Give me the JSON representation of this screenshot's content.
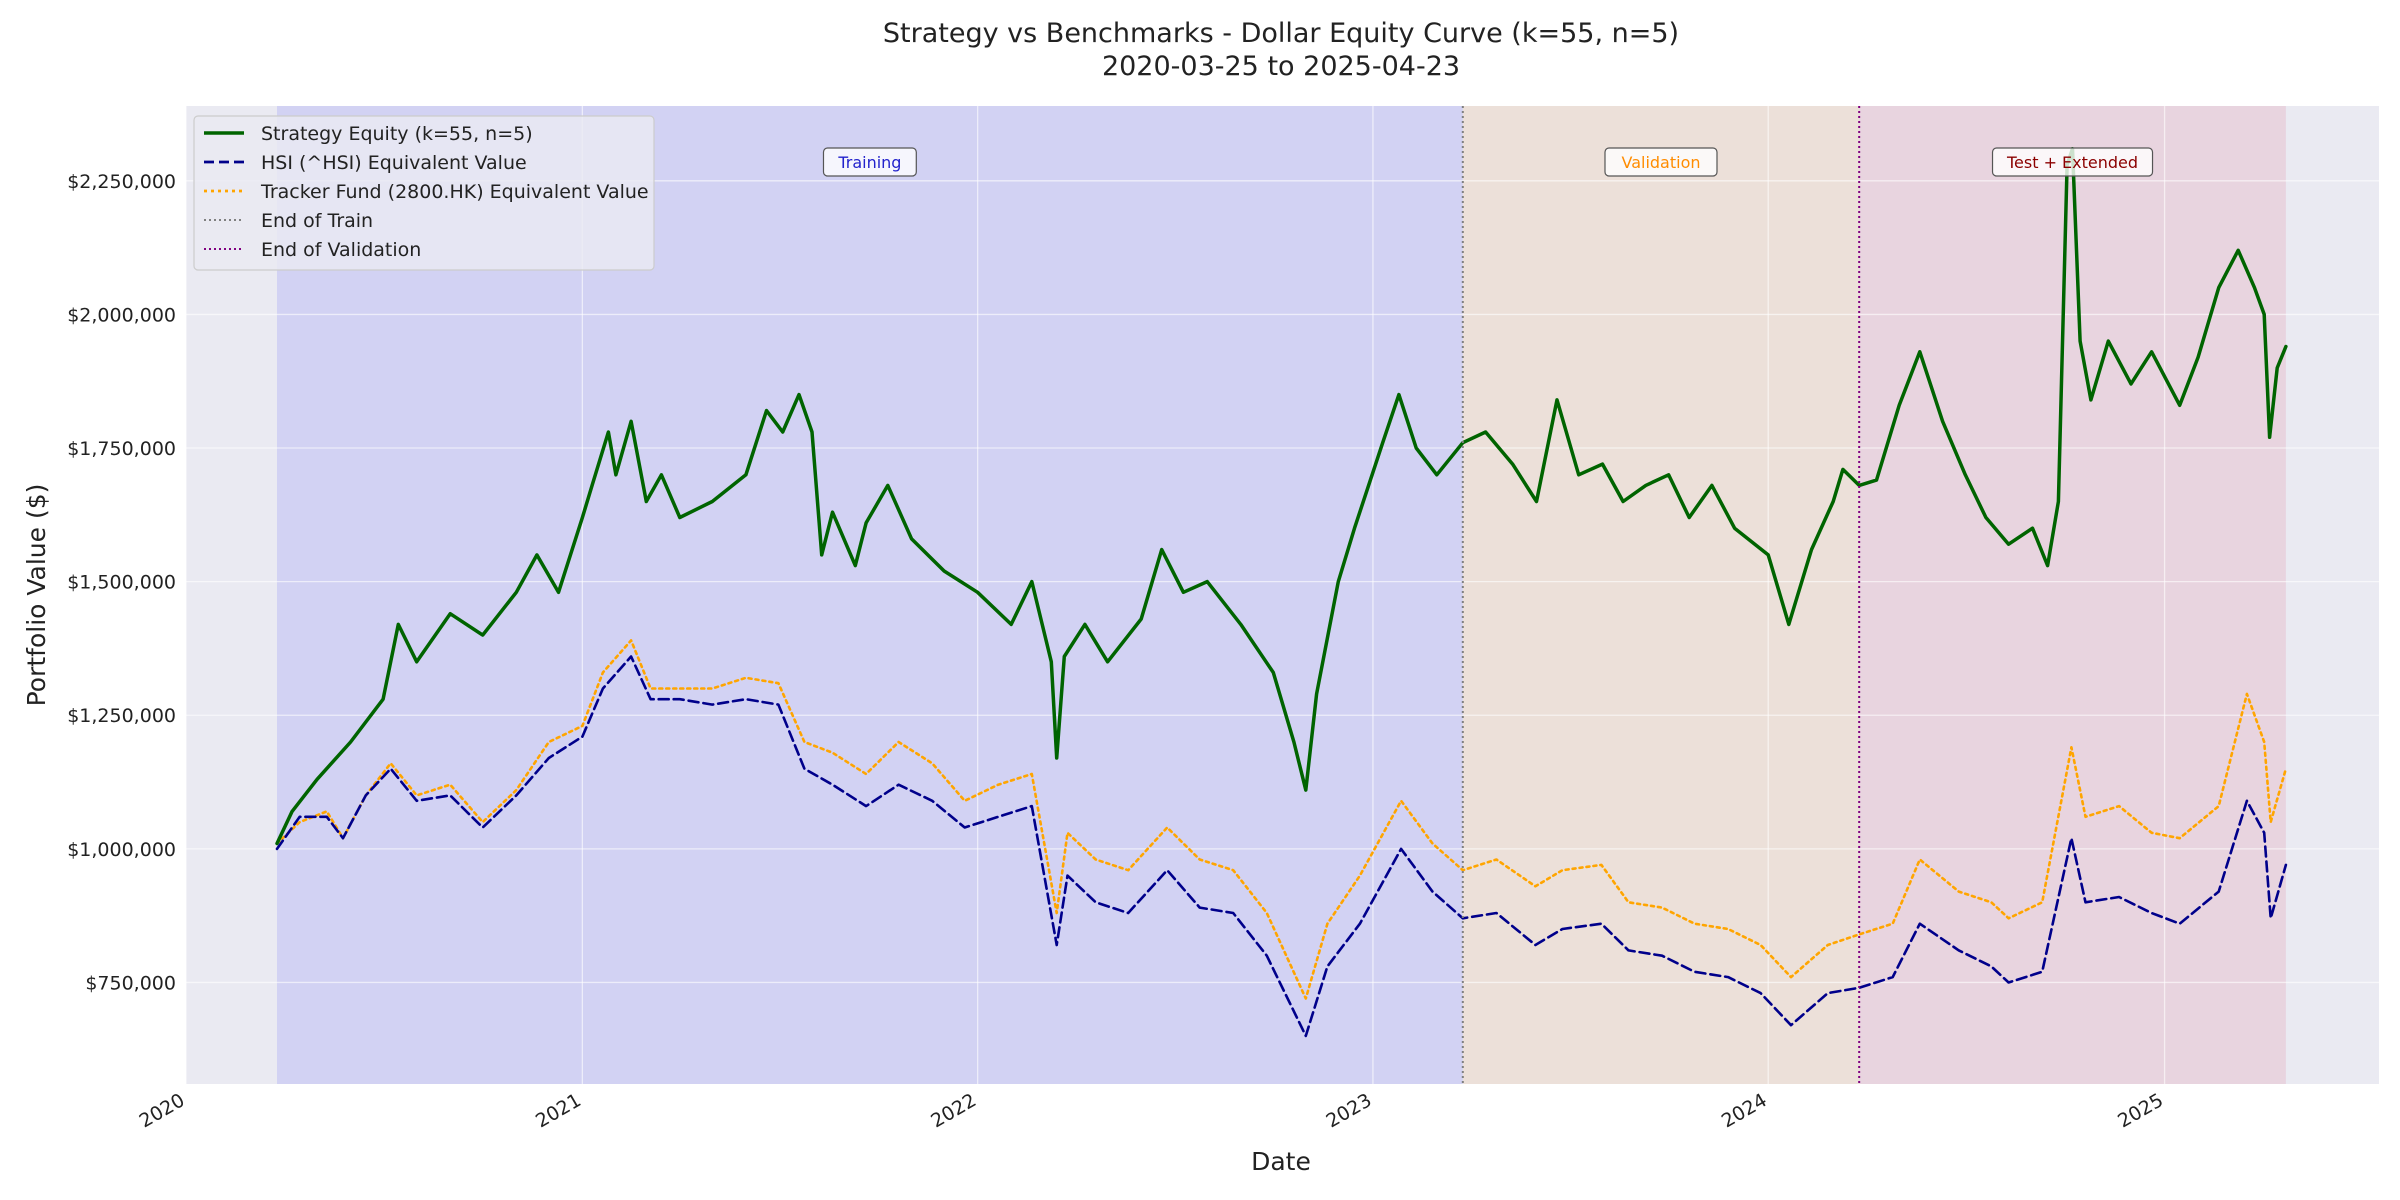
{
  "chart_data": {
    "type": "line",
    "title": "Strategy vs Benchmarks - Dollar Equity Curve (k=55, n=5)",
    "subtitle": "2020-03-25 to 2025-04-23",
    "xlabel": "Date",
    "ylabel": "Portfolio Value ($)",
    "xlim": [
      "2020-01-01",
      "2025-07-18"
    ],
    "ylim": [
      560000,
      2390000
    ],
    "x_ticks": [
      "2020-01-01",
      "2021-01-01",
      "2022-01-01",
      "2023-01-01",
      "2024-01-01",
      "2025-01-01"
    ],
    "x_tick_labels": [
      "2020",
      "2021",
      "2022",
      "2023",
      "2024",
      "2025"
    ],
    "y_ticks": [
      750000,
      1000000,
      1250000,
      1500000,
      1750000,
      2000000,
      2250000
    ],
    "y_tick_labels": [
      "$750,000",
      "$1,000,000",
      "$1,250,000",
      "$1,500,000",
      "$1,750,000",
      "$2,000,000",
      "$2,250,000"
    ],
    "grid": true,
    "legend_position": "top-left",
    "regions": [
      {
        "label": "Training",
        "start": "2020-03-25",
        "end": "2023-03-25",
        "fill": "#0000ff",
        "text_color": "#2222cc"
      },
      {
        "label": "Validation",
        "start": "2023-03-25",
        "end": "2024-03-25",
        "fill": "#ff8c00",
        "text_color": "#ff8c00"
      },
      {
        "label": "Test + Extended",
        "start": "2024-03-25",
        "end": "2025-04-23",
        "fill": "#dc143c",
        "text_color": "#8b0000"
      }
    ],
    "vlines": [
      {
        "name": "End of Train",
        "x": "2023-03-25",
        "color": "#808080"
      },
      {
        "name": "End of Validation",
        "x": "2024-03-25",
        "color": "#800080"
      }
    ],
    "series": [
      {
        "name": "Strategy Equity (k=55, n=5)",
        "color": "#006400",
        "style": "solid",
        "points": [
          [
            "2020-03-25",
            1010000
          ],
          [
            "2020-04-08",
            1070000
          ],
          [
            "2020-05-01",
            1130000
          ],
          [
            "2020-06-01",
            1200000
          ],
          [
            "2020-07-01",
            1280000
          ],
          [
            "2020-07-15",
            1420000
          ],
          [
            "2020-08-01",
            1350000
          ],
          [
            "2020-09-01",
            1440000
          ],
          [
            "2020-10-01",
            1400000
          ],
          [
            "2020-11-01",
            1480000
          ],
          [
            "2020-11-20",
            1550000
          ],
          [
            "2020-12-10",
            1480000
          ],
          [
            "2021-01-01",
            1620000
          ],
          [
            "2021-01-10",
            1680000
          ],
          [
            "2021-01-25",
            1780000
          ],
          [
            "2021-02-01",
            1700000
          ],
          [
            "2021-02-15",
            1800000
          ],
          [
            "2021-03-01",
            1650000
          ],
          [
            "2021-03-15",
            1700000
          ],
          [
            "2021-04-01",
            1620000
          ],
          [
            "2021-05-01",
            1650000
          ],
          [
            "2021-06-01",
            1700000
          ],
          [
            "2021-06-20",
            1820000
          ],
          [
            "2021-07-05",
            1780000
          ],
          [
            "2021-07-20",
            1850000
          ],
          [
            "2021-08-01",
            1780000
          ],
          [
            "2021-08-10",
            1550000
          ],
          [
            "2021-08-20",
            1630000
          ],
          [
            "2021-09-10",
            1530000
          ],
          [
            "2021-09-20",
            1610000
          ],
          [
            "2021-10-10",
            1680000
          ],
          [
            "2021-11-01",
            1580000
          ],
          [
            "2021-12-01",
            1520000
          ],
          [
            "2022-01-01",
            1480000
          ],
          [
            "2022-02-01",
            1420000
          ],
          [
            "2022-02-20",
            1500000
          ],
          [
            "2022-03-10",
            1350000
          ],
          [
            "2022-03-15",
            1170000
          ],
          [
            "2022-03-22",
            1360000
          ],
          [
            "2022-04-10",
            1420000
          ],
          [
            "2022-05-01",
            1350000
          ],
          [
            "2022-06-01",
            1430000
          ],
          [
            "2022-06-20",
            1560000
          ],
          [
            "2022-07-10",
            1480000
          ],
          [
            "2022-08-01",
            1500000
          ],
          [
            "2022-09-01",
            1420000
          ],
          [
            "2022-10-01",
            1330000
          ],
          [
            "2022-10-20",
            1200000
          ],
          [
            "2022-10-31",
            1110000
          ],
          [
            "2022-11-10",
            1290000
          ],
          [
            "2022-11-30",
            1500000
          ],
          [
            "2022-12-15",
            1600000
          ],
          [
            "2023-01-10",
            1760000
          ],
          [
            "2023-01-25",
            1850000
          ],
          [
            "2023-02-10",
            1750000
          ],
          [
            "2023-03-01",
            1700000
          ],
          [
            "2023-03-25",
            1760000
          ],
          [
            "2023-04-15",
            1780000
          ],
          [
            "2023-05-10",
            1720000
          ],
          [
            "2023-06-01",
            1650000
          ],
          [
            "2023-06-20",
            1840000
          ],
          [
            "2023-07-10",
            1700000
          ],
          [
            "2023-08-01",
            1720000
          ],
          [
            "2023-08-20",
            1650000
          ],
          [
            "2023-09-10",
            1680000
          ],
          [
            "2023-10-01",
            1700000
          ],
          [
            "2023-10-20",
            1620000
          ],
          [
            "2023-11-10",
            1680000
          ],
          [
            "2023-12-01",
            1600000
          ],
          [
            "2024-01-01",
            1550000
          ],
          [
            "2024-01-20",
            1420000
          ],
          [
            "2024-02-10",
            1560000
          ],
          [
            "2024-03-01",
            1650000
          ],
          [
            "2024-03-10",
            1710000
          ],
          [
            "2024-03-25",
            1680000
          ],
          [
            "2024-04-10",
            1690000
          ],
          [
            "2024-05-01",
            1830000
          ],
          [
            "2024-05-20",
            1930000
          ],
          [
            "2024-06-10",
            1800000
          ],
          [
            "2024-07-01",
            1700000
          ],
          [
            "2024-07-20",
            1620000
          ],
          [
            "2024-08-10",
            1570000
          ],
          [
            "2024-09-01",
            1600000
          ],
          [
            "2024-09-15",
            1530000
          ],
          [
            "2024-09-25",
            1650000
          ],
          [
            "2024-10-03",
            2280000
          ],
          [
            "2024-10-08",
            2310000
          ],
          [
            "2024-10-15",
            1950000
          ],
          [
            "2024-10-25",
            1840000
          ],
          [
            "2024-11-10",
            1950000
          ],
          [
            "2024-12-01",
            1870000
          ],
          [
            "2024-12-20",
            1930000
          ],
          [
            "2025-01-15",
            1830000
          ],
          [
            "2025-02-01",
            1920000
          ],
          [
            "2025-02-20",
            2050000
          ],
          [
            "2025-03-10",
            2120000
          ],
          [
            "2025-03-25",
            2050000
          ],
          [
            "2025-04-03",
            2000000
          ],
          [
            "2025-04-08",
            1770000
          ],
          [
            "2025-04-15",
            1900000
          ],
          [
            "2025-04-23",
            1940000
          ]
        ]
      },
      {
        "name": "HSI (^HSI) Equivalent Value",
        "color": "#00008b",
        "style": "dashed",
        "points": [
          [
            "2020-03-25",
            1000000
          ],
          [
            "2020-04-15",
            1060000
          ],
          [
            "2020-05-10",
            1060000
          ],
          [
            "2020-05-25",
            1020000
          ],
          [
            "2020-06-15",
            1100000
          ],
          [
            "2020-07-08",
            1150000
          ],
          [
            "2020-08-01",
            1090000
          ],
          [
            "2020-09-01",
            1100000
          ],
          [
            "2020-10-01",
            1040000
          ],
          [
            "2020-11-01",
            1100000
          ],
          [
            "2020-12-01",
            1170000
          ],
          [
            "2021-01-01",
            1210000
          ],
          [
            "2021-01-20",
            1300000
          ],
          [
            "2021-02-15",
            1360000
          ],
          [
            "2021-03-05",
            1280000
          ],
          [
            "2021-04-01",
            1280000
          ],
          [
            "2021-05-01",
            1270000
          ],
          [
            "2021-06-01",
            1280000
          ],
          [
            "2021-07-01",
            1270000
          ],
          [
            "2021-07-25",
            1150000
          ],
          [
            "2021-08-20",
            1120000
          ],
          [
            "2021-09-20",
            1080000
          ],
          [
            "2021-10-20",
            1120000
          ],
          [
            "2021-11-20",
            1090000
          ],
          [
            "2021-12-20",
            1040000
          ],
          [
            "2022-01-20",
            1060000
          ],
          [
            "2022-02-20",
            1080000
          ],
          [
            "2022-03-15",
            820000
          ],
          [
            "2022-03-25",
            950000
          ],
          [
            "2022-04-20",
            900000
          ],
          [
            "2022-05-20",
            880000
          ],
          [
            "2022-06-25",
            960000
          ],
          [
            "2022-07-25",
            890000
          ],
          [
            "2022-08-25",
            880000
          ],
          [
            "2022-09-25",
            800000
          ],
          [
            "2022-10-31",
            650000
          ],
          [
            "2022-11-20",
            780000
          ],
          [
            "2022-12-20",
            860000
          ],
          [
            "2023-01-27",
            1000000
          ],
          [
            "2023-02-25",
            920000
          ],
          [
            "2023-03-25",
            870000
          ],
          [
            "2023-04-25",
            880000
          ],
          [
            "2023-05-31",
            820000
          ],
          [
            "2023-06-25",
            850000
          ],
          [
            "2023-07-31",
            860000
          ],
          [
            "2023-08-25",
            810000
          ],
          [
            "2023-09-25",
            800000
          ],
          [
            "2023-10-25",
            770000
          ],
          [
            "2023-11-25",
            760000
          ],
          [
            "2023-12-25",
            730000
          ],
          [
            "2024-01-22",
            670000
          ],
          [
            "2024-02-25",
            730000
          ],
          [
            "2024-03-25",
            740000
          ],
          [
            "2024-04-25",
            760000
          ],
          [
            "2024-05-20",
            860000
          ],
          [
            "2024-06-25",
            810000
          ],
          [
            "2024-07-25",
            780000
          ],
          [
            "2024-08-10",
            750000
          ],
          [
            "2024-09-10",
            770000
          ],
          [
            "2024-10-07",
            1020000
          ],
          [
            "2024-10-20",
            900000
          ],
          [
            "2024-11-20",
            910000
          ],
          [
            "2024-12-20",
            880000
          ],
          [
            "2025-01-15",
            860000
          ],
          [
            "2025-02-20",
            920000
          ],
          [
            "2025-03-18",
            1090000
          ],
          [
            "2025-04-03",
            1030000
          ],
          [
            "2025-04-09",
            870000
          ],
          [
            "2025-04-23",
            970000
          ]
        ]
      },
      {
        "name": "Tracker Fund (2800.HK) Equivalent Value",
        "color": "#ffa500",
        "style": "dotted",
        "points": [
          [
            "2020-03-25",
            1010000
          ],
          [
            "2020-04-15",
            1050000
          ],
          [
            "2020-05-10",
            1070000
          ],
          [
            "2020-05-25",
            1020000
          ],
          [
            "2020-06-15",
            1100000
          ],
          [
            "2020-07-08",
            1160000
          ],
          [
            "2020-08-01",
            1100000
          ],
          [
            "2020-09-01",
            1120000
          ],
          [
            "2020-10-01",
            1050000
          ],
          [
            "2020-11-01",
            1110000
          ],
          [
            "2020-12-01",
            1200000
          ],
          [
            "2021-01-01",
            1230000
          ],
          [
            "2021-01-20",
            1330000
          ],
          [
            "2021-02-15",
            1390000
          ],
          [
            "2021-03-05",
            1300000
          ],
          [
            "2021-04-01",
            1300000
          ],
          [
            "2021-05-01",
            1300000
          ],
          [
            "2021-06-01",
            1320000
          ],
          [
            "2021-07-01",
            1310000
          ],
          [
            "2021-07-25",
            1200000
          ],
          [
            "2021-08-20",
            1180000
          ],
          [
            "2021-09-20",
            1140000
          ],
          [
            "2021-10-20",
            1200000
          ],
          [
            "2021-11-20",
            1160000
          ],
          [
            "2021-12-20",
            1090000
          ],
          [
            "2022-01-20",
            1120000
          ],
          [
            "2022-02-20",
            1140000
          ],
          [
            "2022-03-15",
            880000
          ],
          [
            "2022-03-25",
            1030000
          ],
          [
            "2022-04-20",
            980000
          ],
          [
            "2022-05-20",
            960000
          ],
          [
            "2022-06-25",
            1040000
          ],
          [
            "2022-07-25",
            980000
          ],
          [
            "2022-08-25",
            960000
          ],
          [
            "2022-09-25",
            880000
          ],
          [
            "2022-10-31",
            720000
          ],
          [
            "2022-11-20",
            860000
          ],
          [
            "2022-12-20",
            950000
          ],
          [
            "2023-01-27",
            1090000
          ],
          [
            "2023-02-25",
            1010000
          ],
          [
            "2023-03-25",
            960000
          ],
          [
            "2023-04-25",
            980000
          ],
          [
            "2023-05-31",
            930000
          ],
          [
            "2023-06-25",
            960000
          ],
          [
            "2023-07-31",
            970000
          ],
          [
            "2023-08-25",
            900000
          ],
          [
            "2023-09-25",
            890000
          ],
          [
            "2023-10-25",
            860000
          ],
          [
            "2023-11-25",
            850000
          ],
          [
            "2023-12-25",
            820000
          ],
          [
            "2024-01-22",
            760000
          ],
          [
            "2024-02-25",
            820000
          ],
          [
            "2024-03-25",
            840000
          ],
          [
            "2024-04-25",
            860000
          ],
          [
            "2024-05-20",
            980000
          ],
          [
            "2024-06-25",
            920000
          ],
          [
            "2024-07-25",
            900000
          ],
          [
            "2024-08-10",
            870000
          ],
          [
            "2024-09-10",
            900000
          ],
          [
            "2024-10-07",
            1190000
          ],
          [
            "2024-10-20",
            1060000
          ],
          [
            "2024-11-20",
            1080000
          ],
          [
            "2024-12-20",
            1030000
          ],
          [
            "2025-01-15",
            1020000
          ],
          [
            "2025-02-20",
            1080000
          ],
          [
            "2025-03-18",
            1290000
          ],
          [
            "2025-04-03",
            1200000
          ],
          [
            "2025-04-09",
            1050000
          ],
          [
            "2025-04-23",
            1150000
          ]
        ]
      }
    ]
  }
}
